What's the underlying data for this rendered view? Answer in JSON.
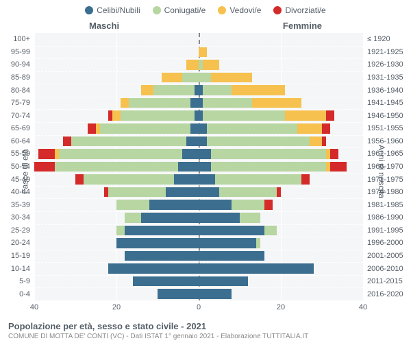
{
  "colors": {
    "celibi": "#3b6e8f",
    "coniugati": "#b7d6a2",
    "vedovi": "#f6c14e",
    "divorziati": "#d42a2a",
    "plot_bg": "#f5f6f7",
    "grid": "#ffffff",
    "text": "#555e67"
  },
  "legend": [
    {
      "key": "celibi",
      "label": "Celibi/Nubili"
    },
    {
      "key": "coniugati",
      "label": "Coniugati/e"
    },
    {
      "key": "vedovi",
      "label": "Vedovi/e"
    },
    {
      "key": "divorziati",
      "label": "Divorziati/e"
    }
  ],
  "gender_labels": {
    "m": "Maschi",
    "f": "Femmine"
  },
  "axis_titles": {
    "left": "Fasce di età",
    "right": "Anni di nascita"
  },
  "xaxis": {
    "min": -40,
    "max": 40,
    "ticks": [
      -40,
      -20,
      0,
      20,
      40
    ],
    "labels": [
      "40",
      "20",
      "0",
      "20",
      "40"
    ]
  },
  "age_bands": [
    "100+",
    "95-99",
    "90-94",
    "85-89",
    "80-84",
    "75-79",
    "70-74",
    "65-69",
    "60-64",
    "55-59",
    "50-54",
    "45-49",
    "40-44",
    "35-39",
    "30-34",
    "25-29",
    "20-24",
    "15-19",
    "10-14",
    "5-9",
    "0-4"
  ],
  "birth_years": [
    "≤ 1920",
    "1921-1925",
    "1926-1930",
    "1931-1935",
    "1936-1940",
    "1941-1945",
    "1946-1950",
    "1951-1955",
    "1956-1960",
    "1961-1965",
    "1966-1970",
    "1971-1975",
    "1976-1980",
    "1981-1985",
    "1986-1990",
    "1991-1995",
    "1996-2000",
    "2001-2005",
    "2006-2010",
    "2011-2015",
    "2016-2020"
  ],
  "data": {
    "m": [
      {
        "c": 0,
        "co": 0,
        "v": 0,
        "d": 0
      },
      {
        "c": 0,
        "co": 0,
        "v": 0,
        "d": 0
      },
      {
        "c": 0,
        "co": 0,
        "v": 3,
        "d": 0
      },
      {
        "c": 0,
        "co": 4,
        "v": 5,
        "d": 0
      },
      {
        "c": 1,
        "co": 10,
        "v": 3,
        "d": 0
      },
      {
        "c": 2,
        "co": 15,
        "v": 2,
        "d": 0
      },
      {
        "c": 1,
        "co": 18,
        "v": 2,
        "d": 1
      },
      {
        "c": 2,
        "co": 22,
        "v": 1,
        "d": 2
      },
      {
        "c": 3,
        "co": 28,
        "v": 0,
        "d": 2
      },
      {
        "c": 4,
        "co": 30,
        "v": 1,
        "d": 4
      },
      {
        "c": 5,
        "co": 30,
        "v": 0,
        "d": 5
      },
      {
        "c": 6,
        "co": 22,
        "v": 0,
        "d": 2
      },
      {
        "c": 8,
        "co": 14,
        "v": 0,
        "d": 1
      },
      {
        "c": 12,
        "co": 8,
        "v": 0,
        "d": 0
      },
      {
        "c": 14,
        "co": 4,
        "v": 0,
        "d": 0
      },
      {
        "c": 18,
        "co": 2,
        "v": 0,
        "d": 0
      },
      {
        "c": 20,
        "co": 0,
        "v": 0,
        "d": 0
      },
      {
        "c": 18,
        "co": 0,
        "v": 0,
        "d": 0
      },
      {
        "c": 22,
        "co": 0,
        "v": 0,
        "d": 0
      },
      {
        "c": 16,
        "co": 0,
        "v": 0,
        "d": 0
      },
      {
        "c": 10,
        "co": 0,
        "v": 0,
        "d": 0
      }
    ],
    "f": [
      {
        "c": 0,
        "co": 0,
        "v": 0,
        "d": 0
      },
      {
        "c": 0,
        "co": 0,
        "v": 2,
        "d": 0
      },
      {
        "c": 0,
        "co": 1,
        "v": 4,
        "d": 0
      },
      {
        "c": 0,
        "co": 3,
        "v": 10,
        "d": 0
      },
      {
        "c": 1,
        "co": 7,
        "v": 13,
        "d": 0
      },
      {
        "c": 1,
        "co": 12,
        "v": 12,
        "d": 0
      },
      {
        "c": 1,
        "co": 20,
        "v": 10,
        "d": 2
      },
      {
        "c": 2,
        "co": 22,
        "v": 6,
        "d": 2
      },
      {
        "c": 2,
        "co": 25,
        "v": 3,
        "d": 1
      },
      {
        "c": 3,
        "co": 28,
        "v": 1,
        "d": 2
      },
      {
        "c": 3,
        "co": 28,
        "v": 1,
        "d": 4
      },
      {
        "c": 4,
        "co": 21,
        "v": 0,
        "d": 2
      },
      {
        "c": 5,
        "co": 14,
        "v": 0,
        "d": 1
      },
      {
        "c": 8,
        "co": 8,
        "v": 0,
        "d": 2
      },
      {
        "c": 10,
        "co": 5,
        "v": 0,
        "d": 0
      },
      {
        "c": 16,
        "co": 3,
        "v": 0,
        "d": 0
      },
      {
        "c": 14,
        "co": 1,
        "v": 0,
        "d": 0
      },
      {
        "c": 16,
        "co": 0,
        "v": 0,
        "d": 0
      },
      {
        "c": 28,
        "co": 0,
        "v": 0,
        "d": 0
      },
      {
        "c": 12,
        "co": 0,
        "v": 0,
        "d": 0
      },
      {
        "c": 8,
        "co": 0,
        "v": 0,
        "d": 0
      }
    ]
  },
  "footer": {
    "title": "Popolazione per età, sesso e stato civile - 2021",
    "subtitle": "COMUNE DI MOTTA DE' CONTI (VC) - Dati ISTAT 1° gennaio 2021 - Elaborazione TUTTITALIA.IT"
  }
}
